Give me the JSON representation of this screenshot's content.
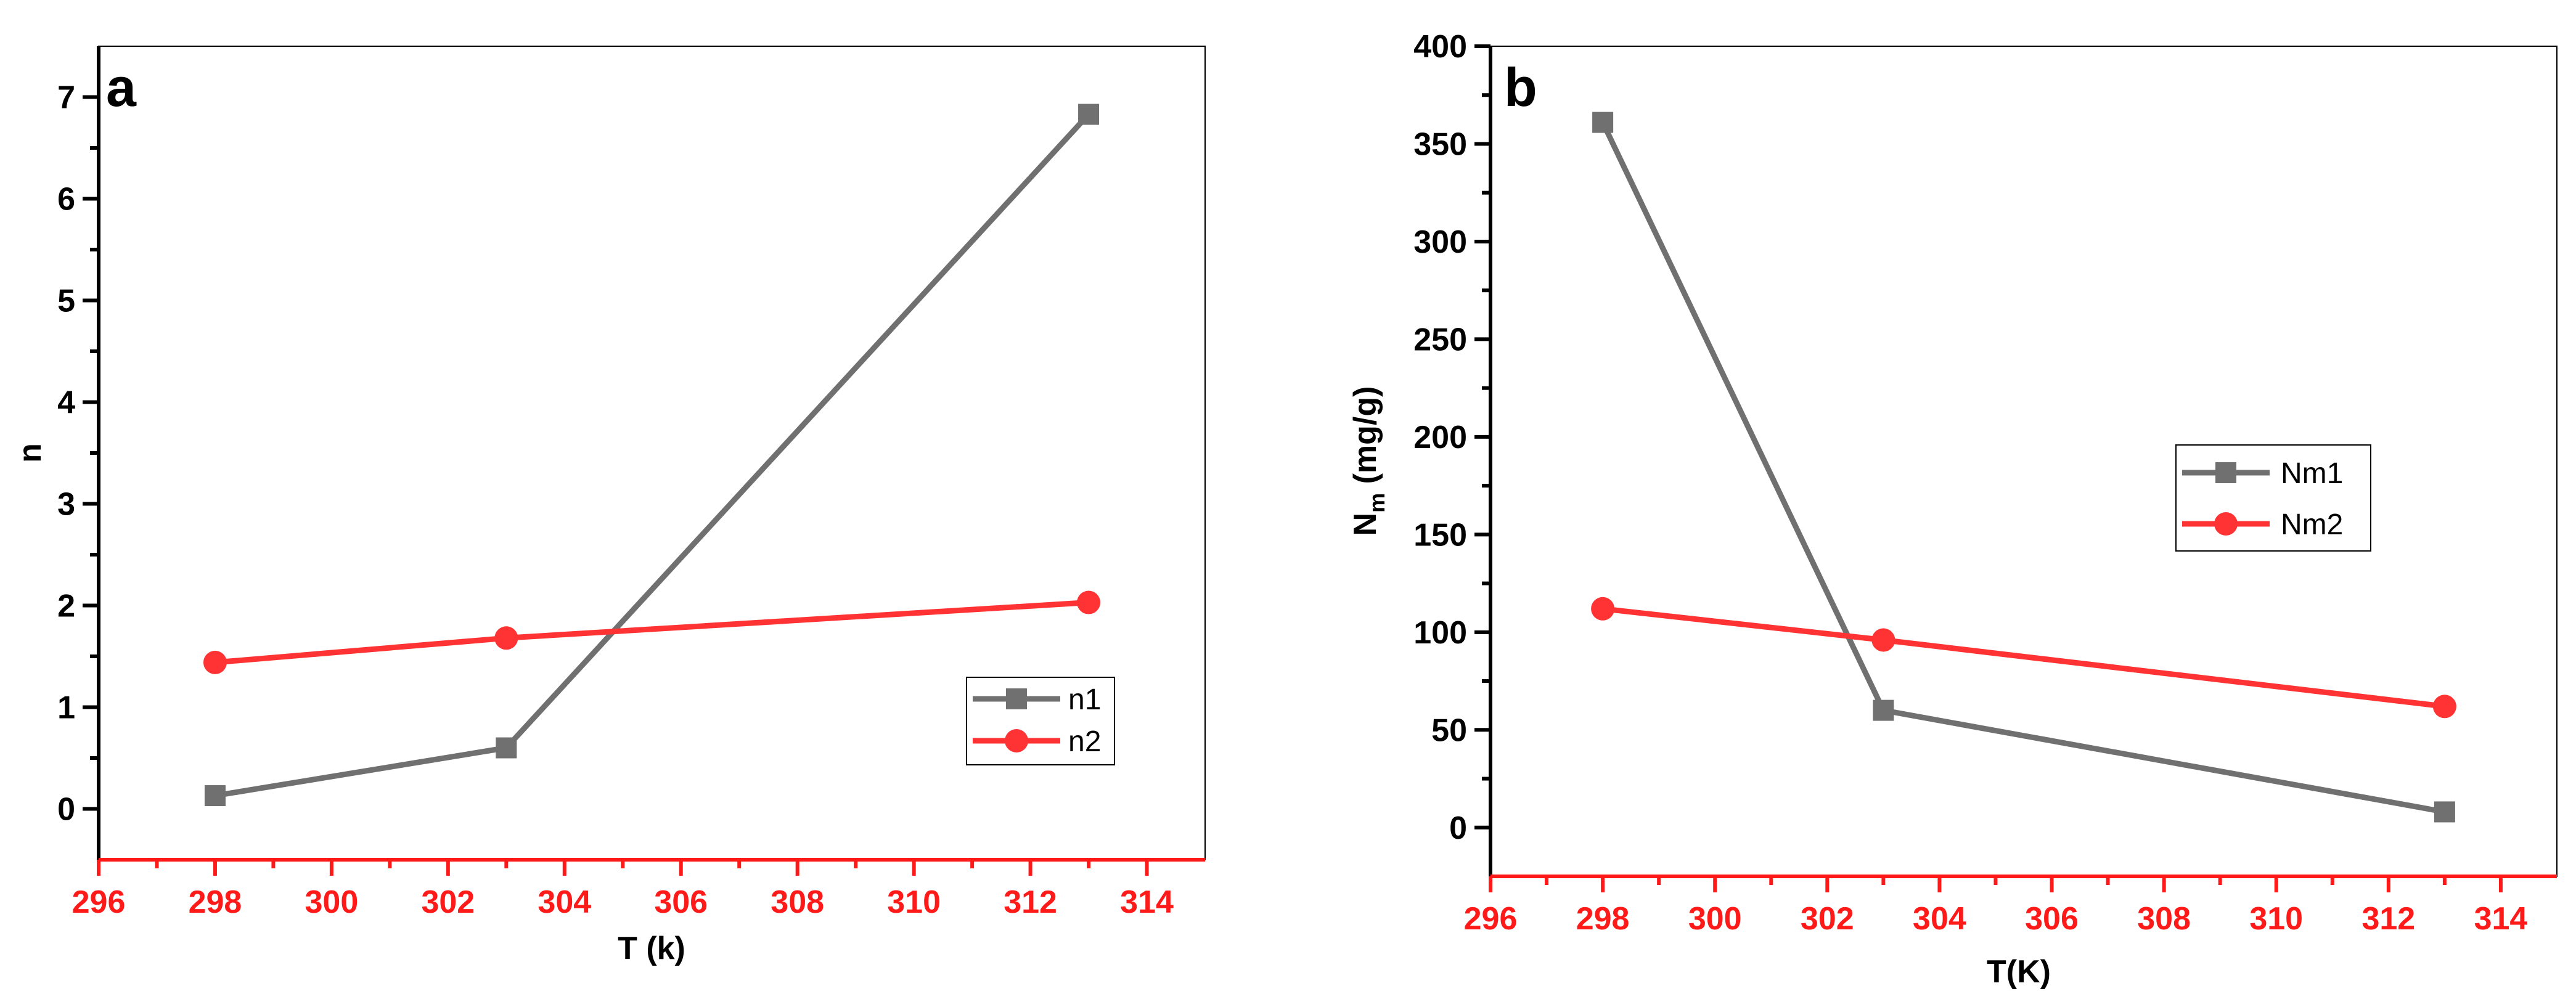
{
  "chart_data": [
    {
      "type": "line",
      "panel": "a",
      "xlabel": "T (k)",
      "ylabel": "n",
      "xlim": [
        296,
        315
      ],
      "ylim": [
        -0.5,
        7.5
      ],
      "xticks": [
        296,
        298,
        300,
        302,
        304,
        306,
        308,
        310,
        312,
        314
      ],
      "yticks": [
        0,
        1,
        2,
        3,
        4,
        5,
        6,
        7
      ],
      "x": [
        298,
        303,
        313
      ],
      "series": [
        {
          "name": "n1",
          "values": [
            0.13,
            0.6,
            6.83
          ],
          "color": "#707070",
          "marker": "square"
        },
        {
          "name": "n2",
          "values": [
            1.44,
            1.68,
            2.03
          ],
          "color": "#ff3333",
          "marker": "circle"
        }
      ],
      "legend_position": "lower-right",
      "x_axis_color": "#ff1a1a"
    },
    {
      "type": "line",
      "panel": "b",
      "xlabel": "T(K)",
      "ylabel_main": "N",
      "ylabel_sub": "m",
      "ylabel_rest": " (mg/g)",
      "xlim": [
        296,
        315
      ],
      "ylim": [
        -25,
        400
      ],
      "xticks": [
        296,
        298,
        300,
        302,
        304,
        306,
        308,
        310,
        312,
        314
      ],
      "yticks": [
        0,
        50,
        100,
        150,
        200,
        250,
        300,
        350,
        400
      ],
      "x": [
        298,
        303,
        313
      ],
      "series": [
        {
          "name": "Nm1",
          "values": [
            361,
            60,
            8
          ],
          "color": "#707070",
          "marker": "square"
        },
        {
          "name": "Nm2",
          "values": [
            112,
            96,
            62
          ],
          "color": "#ff3333",
          "marker": "circle"
        }
      ],
      "legend_position": "center-right",
      "x_axis_color": "#ff1a1a"
    }
  ]
}
